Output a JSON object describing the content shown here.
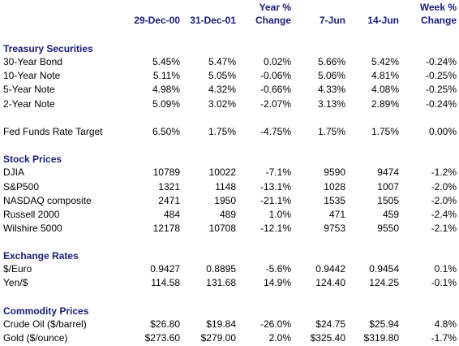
{
  "columns": [
    {
      "line1": "",
      "line2": "29-Dec-00"
    },
    {
      "line1": "",
      "line2": "31-Dec-01"
    },
    {
      "line1": "Year %",
      "line2": "Change"
    },
    {
      "line1": "",
      "line2": "7-Jun"
    },
    {
      "line1": "",
      "line2": "14-Jun"
    },
    {
      "line1": "Week %",
      "line2": "Change"
    }
  ],
  "sections": [
    {
      "title": "Treasury Securities",
      "rows": [
        {
          "label": "30-Year Bond",
          "values": [
            "5.45%",
            "5.47%",
            "0.02%",
            "5.66%",
            "5.42%",
            "-0.24%"
          ]
        },
        {
          "label": "10-Year Note",
          "values": [
            "5.11%",
            "5.05%",
            "-0.06%",
            "5.06%",
            "4.81%",
            "-0.25%"
          ]
        },
        {
          "label": "5-Year Note",
          "values": [
            "4.98%",
            "4.32%",
            "-0.66%",
            "4.33%",
            "4.08%",
            "-0.25%"
          ]
        },
        {
          "label": "2-Year Note",
          "values": [
            "5.09%",
            "3.02%",
            "-2.07%",
            "3.13%",
            "2.89%",
            "-0.24%"
          ]
        }
      ],
      "extra_rows": [
        {
          "label": "Fed Funds Rate Target",
          "values": [
            "6.50%",
            "1.75%",
            "-4.75%",
            "1.75%",
            "1.75%",
            "0.00%"
          ]
        }
      ]
    },
    {
      "title": "Stock Prices",
      "rows": [
        {
          "label": "DJIA",
          "values": [
            "10789",
            "10022",
            "-7.1%",
            "9590",
            "9474",
            "-1.2%"
          ]
        },
        {
          "label": "S&P500",
          "values": [
            "1321",
            "1148",
            "-13.1%",
            "1028",
            "1007",
            "-2.0%"
          ]
        },
        {
          "label": "NASDAQ composite",
          "values": [
            "2471",
            "1950",
            "-21.1%",
            "1535",
            "1505",
            "-2.0%"
          ]
        },
        {
          "label": "Russell 2000",
          "values": [
            "484",
            "489",
            "1.0%",
            "471",
            "459",
            "-2.4%"
          ]
        },
        {
          "label": "Wilshire 5000",
          "values": [
            "12178",
            "10708",
            "-12.1%",
            "9753",
            "9550",
            "-2.1%"
          ]
        }
      ]
    },
    {
      "title": "Exchange Rates",
      "rows": [
        {
          "label": "$/Euro",
          "values": [
            "0.9427",
            "0.8895",
            "-5.6%",
            "0.9442",
            "0.9454",
            "0.1%"
          ]
        },
        {
          "label": "Yen/$",
          "values": [
            "114.58",
            "131.68",
            "14.9%",
            "124.40",
            "124.25",
            "-0.1%"
          ]
        }
      ]
    },
    {
      "title": "Commodity Prices",
      "rows": [
        {
          "label": "Crude Oil ($/barrel)",
          "values": [
            "$26.80",
            "$19.84",
            "-26.0%",
            "$24.75",
            "$25.94",
            "4.8%"
          ]
        },
        {
          "label": "Gold ($/ounce)",
          "values": [
            "$273.60",
            "$279.00",
            "2.0%",
            "$325.40",
            "$319.80",
            "-1.7%"
          ]
        }
      ]
    }
  ]
}
